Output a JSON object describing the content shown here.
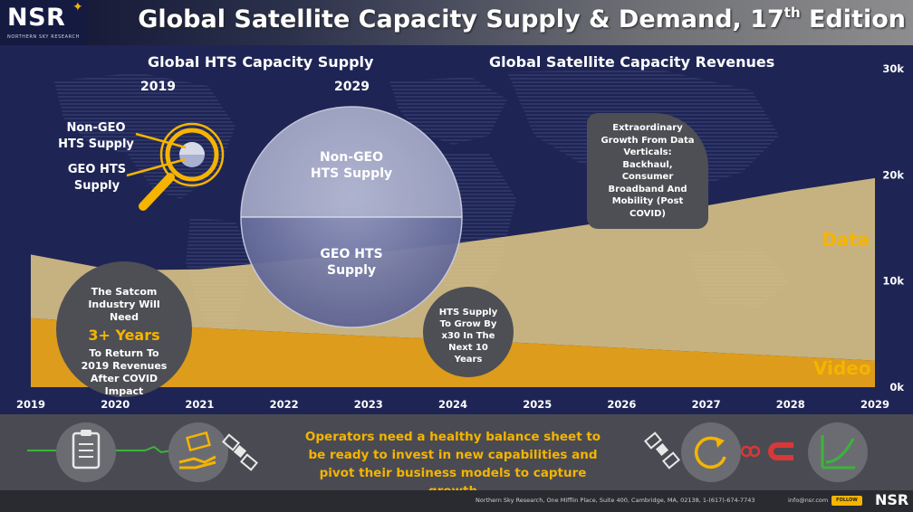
{
  "header": {
    "logo": "NSR",
    "logo_sub": "NORTHERN SKY RESEARCH",
    "title_main": "Global Satellite Capacity Supply & Demand, 17",
    "title_sup": "th",
    "title_end": " Edition"
  },
  "left_section": {
    "title": "Global HTS Capacity Supply",
    "year_start": "2019",
    "year_end": "2029",
    "small_labels": [
      "Non-GEO HTS Supply",
      "GEO HTS Supply"
    ],
    "big_top_label": "Non-GEO HTS Supply",
    "big_bottom_label": "GEO HTS Supply"
  },
  "right_section": {
    "title": "Global Satellite Capacity Revenues"
  },
  "callouts": {
    "satcom_pre": "The Satcom Industry Will Need",
    "satcom_highlight": "3+ Years",
    "satcom_post": "To Return To 2019 Revenues After COVID Impact",
    "hts_growth": "HTS Supply To Grow By x30 In The Next 10 Years",
    "data_growth": "Extraordinary Growth From Data Verticals: Backhaul, Consumer Broadband And Mobility (Post COVID)"
  },
  "chart_data": {
    "type": "area",
    "x": [
      "2019",
      "2020",
      "2021",
      "2022",
      "2023",
      "2024",
      "2025",
      "2026",
      "2027",
      "2028",
      "2029"
    ],
    "ylim": [
      0,
      30000
    ],
    "yticks": [
      "0k",
      "10k",
      "20k",
      "30k"
    ],
    "series": [
      {
        "name": "Video",
        "values": [
          6500,
          6000,
          5600,
          5200,
          4800,
          4500,
          4100,
          3700,
          3300,
          2900,
          2500
        ]
      },
      {
        "name": "Data",
        "values": [
          6000,
          5000,
          5500,
          6700,
          7800,
          9000,
          10500,
          12100,
          13800,
          15600,
          17200
        ]
      }
    ],
    "colors": {
      "Video": "#e8a218",
      "Data": "#f0d68c"
    }
  },
  "band": {
    "message": "Operators need a healthy balance sheet to be ready to invest in new capabilities and pivot their business models to capture growth"
  },
  "icons": [
    "clipboard-icon",
    "money-hand-icon",
    "satellite-icon",
    "satellite-icon",
    "refresh-arrow-icon",
    "magnet-icon",
    "growth-chart-icon"
  ],
  "footer": {
    "address": "Northern Sky Research, One Mifflin Place, Suite 400, Cambridge, MA, 02138, 1-(617)-674-7743",
    "email": "info@nsr.com",
    "button": "FOLLOW",
    "logo": "NSR"
  }
}
